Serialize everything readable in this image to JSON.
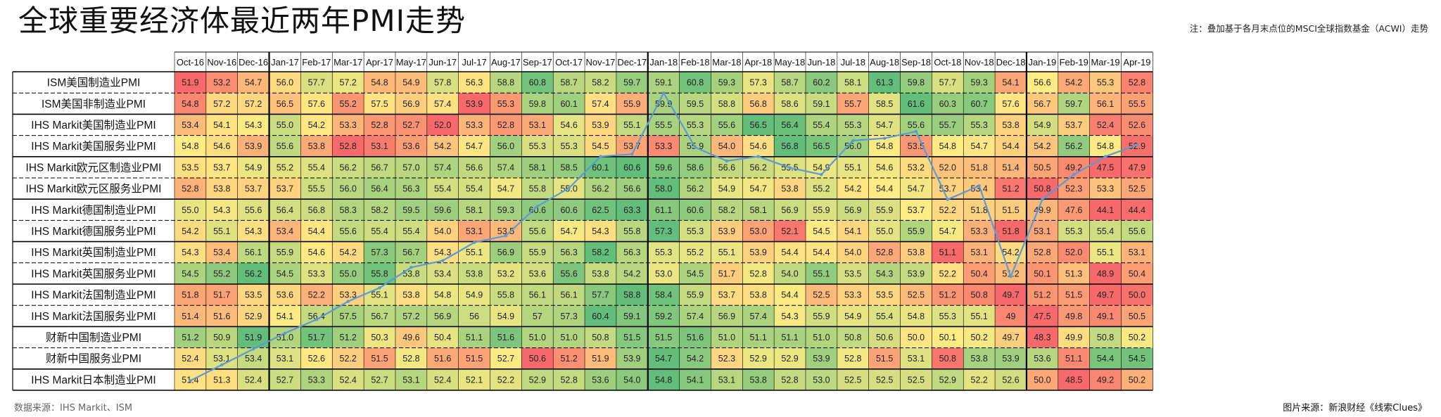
{
  "title": "全球重要经济体最近两年PMI走势",
  "note": "注：叠加基于各月末点位的MSCI全球指数基金（ACWI）走势",
  "source_left": "数据来源：IHS Markit、ISM",
  "source_right": "图片来源：新浪财经《线索Clues》",
  "colors": {
    "low": "#f8696b",
    "mid": "#ffeb84",
    "high": "#63be7b",
    "line": "#5b9bd5"
  },
  "chart_data": {
    "type": "heatmap",
    "title": "全球重要经济体最近两年PMI走势",
    "months": [
      "Oct-16",
      "Nov-16",
      "Dec-16",
      "Jan-17",
      "Feb-17",
      "Mar-17",
      "Apr-17",
      "May-17",
      "Jun-17",
      "Jul-17",
      "Aug-17",
      "Sep-17",
      "Oct-17",
      "Nov-17",
      "Dec-17",
      "Jan-18",
      "Feb-18",
      "Mar-18",
      "Apr-18",
      "May-18",
      "Jun-18",
      "Jul-18",
      "Aug-18",
      "Sep-18",
      "Oct-18",
      "Nov-18",
      "Dec-18",
      "Jan-19",
      "Feb-19",
      "Mar-19",
      "Apr-19"
    ],
    "rows": [
      {
        "name": "ISM美国制造业PMI",
        "values": [
          "51.9",
          "53.2",
          "54.7",
          "56.0",
          "57.7",
          "57.2",
          "54.8",
          "54.9",
          "57.8",
          "56.3",
          "58.8",
          "60.8",
          "58.7",
          "58.2",
          "59.7",
          "59.1",
          "60.8",
          "59.3",
          "57.3",
          "58.7",
          "60.2",
          "58.1",
          "61.3",
          "59.8",
          "57.7",
          "59.3",
          "54.1",
          "56.6",
          "54.2",
          "55.3",
          "52.8"
        ]
      },
      {
        "name": "ISM美国非制造业PMI",
        "values": [
          "54.8",
          "57.2",
          "57.2",
          "56.5",
          "57.6",
          "55.2",
          "57.5",
          "56.9",
          "57.4",
          "53.9",
          "55.3",
          "59.8",
          "60.1",
          "57.4",
          "55.9",
          "59.9",
          "59.5",
          "58.8",
          "56.8",
          "58.6",
          "59.1",
          "55.7",
          "58.5",
          "61.6",
          "60.3",
          "60.7",
          "57.6",
          "56.7",
          "59.7",
          "56.1",
          "55.5"
        ]
      },
      {
        "name": "IHS Markit美国制造业PMI",
        "values": [
          "53.4",
          "54.1",
          "54.3",
          "55.0",
          "54.2",
          "53.3",
          "52.8",
          "52.7",
          "52.0",
          "53.3",
          "52.8",
          "53.1",
          "54.6",
          "53.9",
          "55.1",
          "55.5",
          "55.3",
          "55.6",
          "56.5",
          "56.4",
          "55.4",
          "55.3",
          "54.7",
          "55.6",
          "55.7",
          "55.3",
          "53.8",
          "54.9",
          "53.7",
          "52.4",
          "52.6"
        ]
      },
      {
        "name": "IHS Markit美国服务业PMI",
        "values": [
          "54.8",
          "54.6",
          "53.9",
          "55.6",
          "53.8",
          "52.8",
          "53.1",
          "53.6",
          "54.2",
          "54.7",
          "56.0",
          "55.3",
          "55.3",
          "54.5",
          "53.7",
          "53.3",
          "55.9",
          "54.0",
          "54.6",
          "56.8",
          "56.5",
          "56.0",
          "54.8",
          "53.5",
          "54.8",
          "54.7",
          "54.4",
          "54.2",
          "56.2",
          "54.8",
          "52.9"
        ]
      },
      {
        "name": "IHS Markit欧元区制造业PMI",
        "values": [
          "53.5",
          "53.7",
          "54.9",
          "55.2",
          "55.4",
          "56.2",
          "56.7",
          "57.0",
          "57.4",
          "56.6",
          "57.4",
          "58.1",
          "58.5",
          "60.1",
          "60.6",
          "59.6",
          "58.6",
          "56.6",
          "56.2",
          "55.5",
          "54.9",
          "55.1",
          "54.6",
          "53.2",
          "52.0",
          "51.8",
          "51.4",
          "50.5",
          "49.2",
          "47.5",
          "47.9"
        ]
      },
      {
        "name": "IHS Markit欧元区服务业PMI",
        "values": [
          "52.8",
          "53.8",
          "53.7",
          "53.7",
          "55.5",
          "56.0",
          "56.4",
          "56.3",
          "55.4",
          "55.4",
          "54.7",
          "55.8",
          "55.0",
          "56.2",
          "56.6",
          "58.0",
          "56.2",
          "54.9",
          "54.7",
          "53.8",
          "55.2",
          "54.2",
          "54.4",
          "54.7",
          "53.7",
          "53.4",
          "51.2",
          "50.8",
          "52.3",
          "53.3",
          "52.5"
        ]
      },
      {
        "name": "IHS Markit德国制造业PMI",
        "values": [
          "55.0",
          "54.3",
          "55.6",
          "56.4",
          "56.8",
          "58.3",
          "58.2",
          "59.5",
          "59.6",
          "58.1",
          "59.3",
          "60.6",
          "60.6",
          "62.5",
          "63.3",
          "61.1",
          "60.6",
          "58.2",
          "58.1",
          "56.9",
          "55.9",
          "56.9",
          "55.9",
          "53.7",
          "52.2",
          "51.8",
          "51.5",
          "49.9",
          "47.6",
          "44.1",
          "44.4"
        ]
      },
      {
        "name": "IHS Markit德国服务业PMI",
        "values": [
          "54.2",
          "55.1",
          "54.3",
          "53.4",
          "54.4",
          "55.6",
          "55.4",
          "55.4",
          "54.0",
          "53.1",
          "53.5",
          "55.6",
          "54.7",
          "54.3",
          "55.8",
          "57.3",
          "55.3",
          "53.9",
          "53.0",
          "52.1",
          "54.5",
          "54.1",
          "55.0",
          "55.9",
          "54.7",
          "53.3",
          "51.8",
          "53.1",
          "55.3",
          "55.4",
          "55.6"
        ]
      },
      {
        "name": "IHS Markit英国制造业PMI",
        "values": [
          "54.3",
          "53.4",
          "56.1",
          "55.9",
          "54.6",
          "54.2",
          "57.3",
          "56.7",
          "54.3",
          "55.1",
          "56.9",
          "55.9",
          "56.3",
          "58.2",
          "56.3",
          "55.3",
          "55.2",
          "55.1",
          "53.9",
          "54.4",
          "54.4",
          "54.0",
          "52.8",
          "53.8",
          "51.1",
          "53.1",
          "54.2",
          "52.8",
          "52.0",
          "55.1",
          "53.1"
        ]
      },
      {
        "name": "IHS Markit英国服务业PMI",
        "values": [
          "54.5",
          "55.2",
          "56.2",
          "54.5",
          "53.3",
          "55.0",
          "55.8",
          "53.8",
          "53.4",
          "53.8",
          "53.2",
          "53.6",
          "55.6",
          "53.8",
          "54.2",
          "53.0",
          "54.5",
          "51.7",
          "52.8",
          "54.0",
          "55.1",
          "53.5",
          "54.3",
          "53.9",
          "52.2",
          "50.4",
          "51.2",
          "50.1",
          "51.3",
          "48.9",
          "50.4"
        ]
      },
      {
        "name": "IHS Markit法国制造业PMI",
        "values": [
          "51.8",
          "51.7",
          "53.5",
          "53.6",
          "52.2",
          "53.3",
          "55.1",
          "53.8",
          "54.8",
          "54.9",
          "55.8",
          "56.1",
          "56.1",
          "57.7",
          "58.8",
          "58.4",
          "55.9",
          "53.7",
          "53.8",
          "54.4",
          "52.5",
          "53.3",
          "53.5",
          "52.5",
          "51.2",
          "50.8",
          "49.7",
          "51.2",
          "51.5",
          "49.7",
          "50.0"
        ]
      },
      {
        "name": "IHS Markit法国服务业PMI",
        "values": [
          "51.4",
          "51.6",
          "52.9",
          "54.1",
          "56.4",
          "57.5",
          "56.7",
          "57.2",
          "56.9",
          "56",
          "54.9",
          "57",
          "57.3",
          "60.4",
          "59.1",
          "59.2",
          "57.4",
          "56.9",
          "57.4",
          "54.3",
          "55.9",
          "54.9",
          "55.4",
          "54.8",
          "55.3",
          "55.1",
          "49",
          "47.5",
          "49.8",
          "49.1",
          "50.5"
        ]
      },
      {
        "name": "财新中国制造业PMI",
        "values": [
          "51.2",
          "50.9",
          "51.9",
          "51.0",
          "51.7",
          "51.2",
          "50.3",
          "49.6",
          "50.4",
          "51.1",
          "51.6",
          "51.0",
          "51.0",
          "50.8",
          "51.5",
          "51.5",
          "51.6",
          "51.0",
          "51.1",
          "51.1",
          "51.0",
          "50.8",
          "50.6",
          "50.0",
          "50.1",
          "50.2",
          "49.7",
          "48.3",
          "49.9",
          "50.8",
          "50.2"
        ]
      },
      {
        "name": "财新中国服务业PMI",
        "values": [
          "52.4",
          "53.1",
          "53.4",
          "53.1",
          "52.6",
          "52.2",
          "51.5",
          "52.8",
          "51.6",
          "51.5",
          "52.7",
          "50.6",
          "51.2",
          "51.9",
          "53.9",
          "54.7",
          "54.2",
          "52.3",
          "52.9",
          "52.9",
          "53.9",
          "52.8",
          "51.5",
          "53.1",
          "50.8",
          "53.8",
          "53.9",
          "53.6",
          "51.1",
          "54.4",
          "54.5"
        ]
      },
      {
        "name": "IHS Markit日本制造业PMI",
        "values": [
          "51.4",
          "51.3",
          "52.4",
          "52.7",
          "53.3",
          "52.4",
          "52.7",
          "53.1",
          "52.4",
          "52.1",
          "52.2",
          "52.9",
          "52.8",
          "53.6",
          "54.0",
          "54.8",
          "54.1",
          "53.1",
          "53.8",
          "52.8",
          "53.0",
          "52.5",
          "52.5",
          "52.5",
          "52.9",
          "52.2",
          "52.6",
          "50.0",
          "48.5",
          "49.2",
          "50.2"
        ]
      }
    ],
    "row_groups": [
      [
        0,
        1
      ],
      [
        2,
        3
      ],
      [
        4,
        5
      ],
      [
        6,
        7
      ],
      [
        8,
        9
      ],
      [
        10,
        11
      ],
      [
        12,
        13
      ],
      [
        14
      ]
    ],
    "year_starts": [
      3,
      15,
      27
    ],
    "overlay_series": {
      "values": [
        51.9,
        52.6,
        53.3,
        54.0,
        54.6,
        55.4,
        56.0,
        56.9,
        57.2,
        58.0,
        58.3,
        59.6,
        60.4,
        61.8,
        61.9,
        64.6,
        62.2,
        61.6,
        61.8,
        61.3,
        61.0,
        62.5,
        62.6,
        62.9,
        59.9,
        60.5,
        56.5,
        59.9,
        61.0,
        61.8,
        62.3
      ]
    }
  }
}
